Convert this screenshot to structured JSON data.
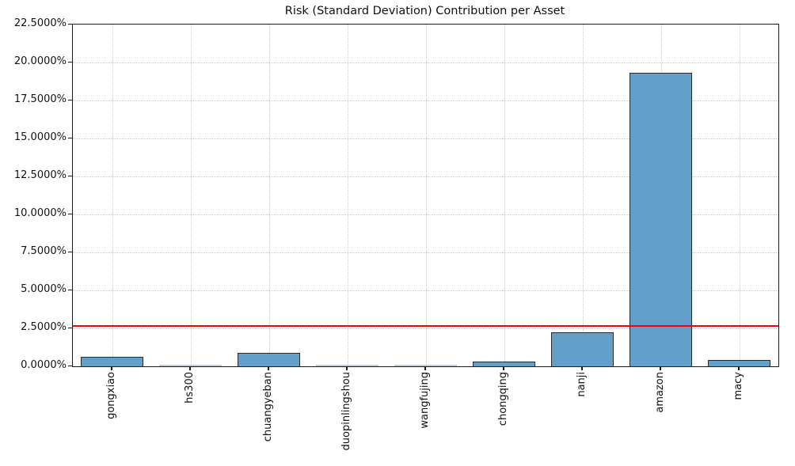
{
  "chart_data": {
    "type": "bar",
    "title": "Risk (Standard Deviation) Contribution per Asset",
    "xlabel": "",
    "ylabel": "",
    "categories": [
      "gongxiao",
      "hs300",
      "chuangyeban",
      "duopinlingshou",
      "wangfujing",
      "chongqing",
      "nanji",
      "amazon",
      "macy"
    ],
    "values": [
      0.61,
      0.02,
      0.9,
      0.02,
      0.03,
      0.33,
      2.26,
      19.32,
      0.42
    ],
    "value_unit": "%",
    "ylim": [
      0,
      22.5
    ],
    "ytick_values": [
      0,
      2.5,
      5,
      7.5,
      10,
      12.5,
      15,
      17.5,
      20,
      22.5
    ],
    "ytick_labels": [
      "0.0000%",
      "2.5000%",
      "5.0000%",
      "7.5000%",
      "10.0000%",
      "12.5000%",
      "15.0000%",
      "17.5000%",
      "20.0000%",
      "22.5000%"
    ],
    "reference_line": {
      "value": 2.66,
      "color": "#ff0000",
      "meaning": "mean risk contribution"
    },
    "grid": "dotted-both-axes",
    "legend": "none",
    "colors": {
      "bar_fill": "#62a0ca",
      "bar_edge": "#2a2a2a",
      "tiny_bar": "#bfccd6",
      "gridline": "#c9c9c9",
      "spine": "#1a1a1a",
      "background": "#ffffff"
    }
  }
}
